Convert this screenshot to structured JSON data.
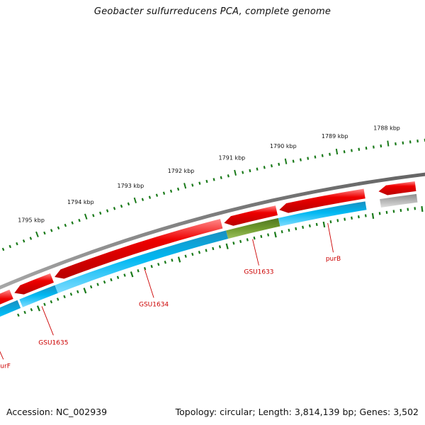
{
  "title": "Geobacter sulfurreducens PCA, complete genome",
  "footer": {
    "accession": "Accession: NC_002939",
    "summary": "Topology: circular; Length: 3,814,139 bp; Genes: 3,502"
  },
  "scale": {
    "unit": "kbp",
    "tick_labels": [
      "1795 kbp",
      "1794 kbp",
      "1793 kbp",
      "1792 kbp",
      "1791 kbp",
      "1790 kbp",
      "1789 kbp",
      "1788 kbp"
    ]
  },
  "genes": [
    {
      "label": "purF",
      "strand": "reverse",
      "category": "cds"
    },
    {
      "label": "GSU1635",
      "strand": "reverse",
      "category": "cds"
    },
    {
      "label": "GSU1634",
      "strand": "reverse",
      "category": "cds"
    },
    {
      "label": "GSU1633",
      "strand": "reverse",
      "category": "cds-highlighted"
    },
    {
      "label": "purB",
      "strand": "reverse",
      "category": "cds"
    },
    {
      "label": "",
      "strand": "reverse",
      "category": "cds-partial"
    }
  ],
  "colors": {
    "background": "#ffffff",
    "gene_arrow": "#ee0000",
    "cds_track": "#00b4f0",
    "cds_highlight": "#6f9a2e",
    "partial_track": "#b0b0b0",
    "backbone": "#7f7f7f",
    "tick": "#1a7a1a",
    "gene_label": "#cc0000"
  }
}
